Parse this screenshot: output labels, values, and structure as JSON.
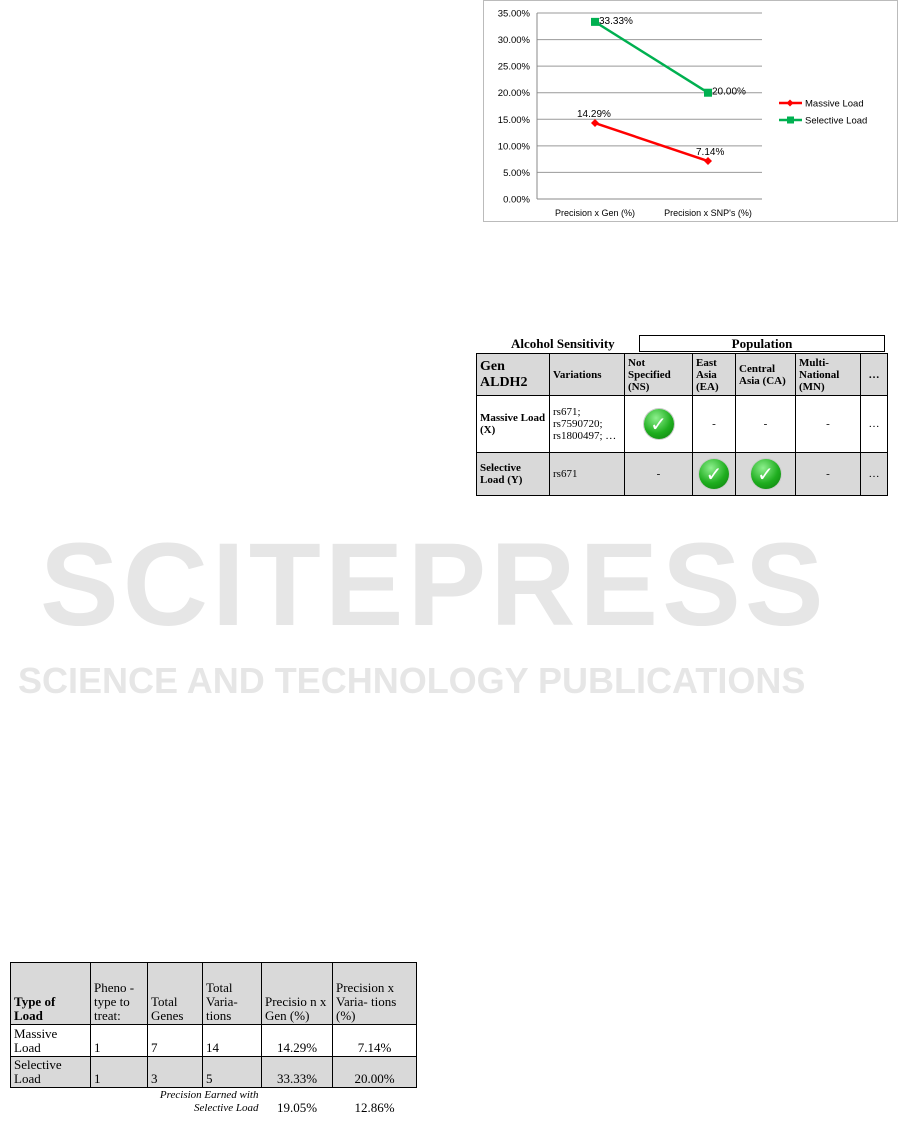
{
  "watermark": {
    "line1": "SCITEPRESS",
    "line2": "SCIENCE AND TECHNOLOGY PUBLICATIONS"
  },
  "chart_data": {
    "type": "line",
    "categories": [
      "Precision x Gen (%)",
      "Precision x SNP's (%)"
    ],
    "series": [
      {
        "name": "Massive Load",
        "values": [
          14.29,
          7.14
        ],
        "labels": [
          "14.29%",
          "7.14%"
        ],
        "color": "#ff0000",
        "marker": "diamond"
      },
      {
        "name": "Selective Load",
        "values": [
          33.33,
          20.0
        ],
        "labels": [
          "33.33%",
          "20.00%"
        ],
        "color": "#00b050",
        "marker": "square"
      }
    ],
    "ylim": [
      0,
      35
    ],
    "yticks": [
      "0.00%",
      "5.00%",
      "10.00%",
      "15.00%",
      "20.00%",
      "25.00%",
      "30.00%",
      "35.00%"
    ],
    "grid": true,
    "legend": "right"
  },
  "table2": {
    "caption": "Alcohol Sensitivity",
    "group_header": "Population",
    "headers": [
      "Gen ALDH2",
      "Variations",
      "Not Specified (NS)",
      "East Asia (EA)",
      "Central Asia (CA)",
      "Multi-National (MN)",
      "…"
    ],
    "rows": [
      {
        "label": "Massive Load (X)",
        "variations": "rs671; rs7590720; rs1800497; …",
        "cells": [
          "check",
          "-",
          "-",
          "-",
          "…"
        ]
      },
      {
        "label": "Selective Load (Y)",
        "variations": "rs671",
        "cells": [
          "-",
          "check",
          "check",
          "-",
          "…"
        ]
      }
    ],
    "check_symbol": "✓"
  },
  "table1": {
    "headers": [
      "Type of Load",
      "Pheno -type to treat:",
      "Total Genes",
      "Total Varia- tions",
      "Precisio n x Gen (%)",
      "Precision x Varia- tions (%)"
    ],
    "rows": [
      [
        "Massive Load",
        "1",
        "7",
        "14",
        "14.29%",
        "7.14%"
      ],
      [
        "Selective Load",
        "1",
        "3",
        "5",
        "33.33%",
        "20.00%"
      ]
    ],
    "footer_label": "Precision Earned with Selective Load",
    "footer_values": [
      "19.05%",
      "12.86%"
    ]
  }
}
